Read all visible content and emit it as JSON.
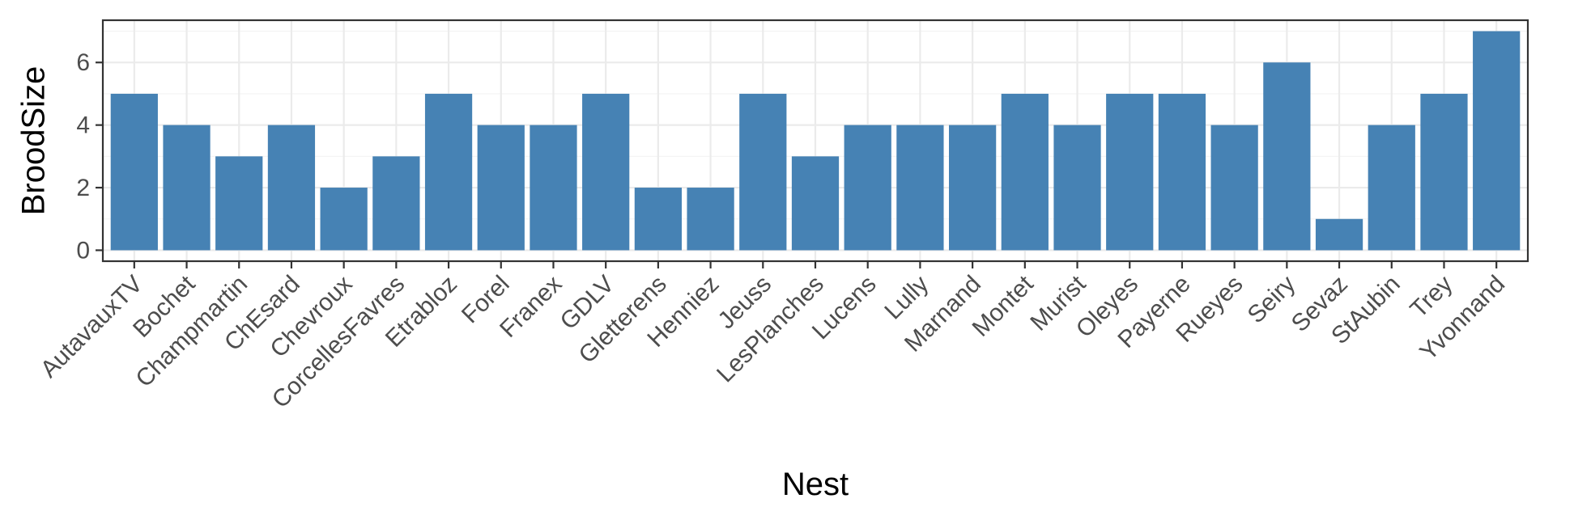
{
  "chart_data": {
    "type": "bar",
    "xlabel": "Nest",
    "ylabel": "BroodSize",
    "categories": [
      "AutavauxTV",
      "Bochet",
      "Champmartin",
      "ChEsard",
      "Chevroux",
      "CorcellesFavres",
      "Etrabloz",
      "Forel",
      "Franex",
      "GDLV",
      "Gletterens",
      "Henniez",
      "Jeuss",
      "LesPlanches",
      "Lucens",
      "Lully",
      "Marnand",
      "Montet",
      "Murist",
      "Oleyes",
      "Payerne",
      "Rueyes",
      "Seiry",
      "Sevaz",
      "StAubin",
      "Trey",
      "Yvonnand"
    ],
    "values": [
      5,
      4,
      3,
      4,
      2,
      3,
      5,
      4,
      4,
      5,
      2,
      2,
      5,
      3,
      4,
      4,
      4,
      5,
      4,
      5,
      5,
      4,
      6,
      1,
      4,
      5,
      7
    ],
    "ylim": [
      -0.35,
      7.35
    ],
    "yticks": [
      0,
      2,
      4,
      6
    ],
    "bar_color": "#4682b4",
    "grid": true,
    "legend": "none"
  }
}
